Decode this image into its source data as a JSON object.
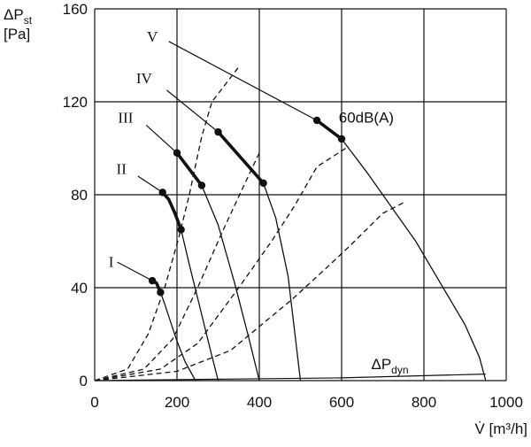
{
  "chart_data": {
    "type": "line",
    "title": "",
    "ylabel": {
      "main": "ΔP",
      "sub": "st",
      "unit": "[Pa]"
    },
    "xlabel": "V̇ [m³/h]",
    "xlim": [
      0,
      1000
    ],
    "ylim": [
      0,
      160
    ],
    "x_ticks": [
      0,
      200,
      400,
      600,
      800,
      1000
    ],
    "y_ticks": [
      0,
      40,
      80,
      120,
      160
    ],
    "grid": true,
    "legend": "none",
    "colors": {
      "line": "#111111",
      "grid": "#111111"
    },
    "series": [
      {
        "name": "I",
        "style": "solid",
        "points": [
          [
            140,
            43
          ],
          [
            150,
            42
          ],
          [
            160,
            38
          ],
          [
            170,
            33
          ],
          [
            185,
            25
          ],
          [
            200,
            17
          ],
          [
            220,
            8
          ],
          [
            245,
            0
          ]
        ],
        "bold": [
          [
            140,
            43
          ],
          [
            150,
            42
          ],
          [
            160,
            38
          ]
        ],
        "markers": [
          [
            140,
            43
          ],
          [
            160,
            38
          ]
        ]
      },
      {
        "name": "II",
        "style": "solid",
        "points": [
          [
            165,
            81
          ],
          [
            180,
            78
          ],
          [
            195,
            72
          ],
          [
            210,
            65
          ],
          [
            230,
            50
          ],
          [
            255,
            32
          ],
          [
            280,
            14
          ],
          [
            300,
            0
          ]
        ],
        "bold": [
          [
            165,
            81
          ],
          [
            180,
            78
          ],
          [
            195,
            72
          ],
          [
            210,
            65
          ]
        ],
        "markers": [
          [
            165,
            81
          ],
          [
            210,
            65
          ]
        ]
      },
      {
        "name": "III",
        "style": "solid",
        "points": [
          [
            200,
            98
          ],
          [
            230,
            91
          ],
          [
            260,
            84
          ],
          [
            300,
            67
          ],
          [
            340,
            42
          ],
          [
            375,
            18
          ],
          [
            400,
            0
          ]
        ],
        "bold": [
          [
            200,
            98
          ],
          [
            230,
            91
          ],
          [
            260,
            84
          ]
        ],
        "markers": [
          [
            200,
            98
          ],
          [
            260,
            84
          ]
        ]
      },
      {
        "name": "IV",
        "style": "solid",
        "points": [
          [
            300,
            107
          ],
          [
            350,
            97
          ],
          [
            410,
            85
          ],
          [
            440,
            70
          ],
          [
            470,
            45
          ],
          [
            500,
            0
          ]
        ],
        "bold": [
          [
            300,
            107
          ],
          [
            350,
            97
          ],
          [
            410,
            85
          ]
        ],
        "markers": [
          [
            300,
            107
          ],
          [
            410,
            85
          ]
        ]
      },
      {
        "name": "V",
        "style": "solid",
        "points": [
          [
            540,
            112
          ],
          [
            600,
            104
          ],
          [
            660,
            90
          ],
          [
            720,
            75
          ],
          [
            780,
            60
          ],
          [
            840,
            42
          ],
          [
            900,
            24
          ],
          [
            935,
            10
          ],
          [
            950,
            0
          ]
        ],
        "bold": [
          [
            540,
            112
          ],
          [
            570,
            108
          ],
          [
            600,
            104
          ]
        ],
        "markers": [
          [
            540,
            112
          ],
          [
            600,
            104
          ]
        ]
      },
      {
        "name": "",
        "style": "dashed",
        "points": [
          [
            0,
            0
          ],
          [
            80,
            5
          ],
          [
            130,
            20
          ],
          [
            170,
            40
          ],
          [
            205,
            62
          ],
          [
            230,
            80
          ],
          [
            260,
            105
          ],
          [
            285,
            120
          ],
          [
            350,
            135
          ]
        ]
      },
      {
        "name": "",
        "style": "dashed",
        "points": [
          [
            0,
            0
          ],
          [
            120,
            5
          ],
          [
            190,
            18
          ],
          [
            250,
            40
          ],
          [
            310,
            64
          ],
          [
            360,
            83
          ],
          [
            400,
            98
          ]
        ]
      },
      {
        "name": "",
        "style": "dashed",
        "points": [
          [
            0,
            0
          ],
          [
            160,
            5
          ],
          [
            250,
            16
          ],
          [
            350,
            40
          ],
          [
            430,
            60
          ],
          [
            485,
            75
          ],
          [
            540,
            92
          ],
          [
            610,
            100
          ]
        ]
      },
      {
        "name": "",
        "style": "dashed",
        "points": [
          [
            0,
            0
          ],
          [
            200,
            4
          ],
          [
            330,
            13
          ],
          [
            480,
            35
          ],
          [
            560,
            48
          ],
          [
            620,
            58
          ],
          [
            700,
            72
          ],
          [
            755,
            77
          ]
        ]
      },
      {
        "name": "",
        "style": "solid-thin",
        "points": [
          [
            0,
            0
          ],
          [
            300,
            0.6
          ],
          [
            600,
            1.2
          ],
          [
            950,
            2.8
          ]
        ]
      }
    ],
    "curve_labels": [
      {
        "text": "I",
        "x": 40,
        "y": 49
      },
      {
        "text": "II",
        "x": 65,
        "y": 89
      },
      {
        "text": "III",
        "x": 75,
        "y": 111
      },
      {
        "text": "IV",
        "x": 120,
        "y": 128
      },
      {
        "text": "V",
        "x": 140,
        "y": 146
      }
    ],
    "annotations": [
      {
        "text": "60dB(A)",
        "x": 593,
        "y": 111
      },
      {
        "text": "ΔP",
        "sub": "dyn",
        "x": 672,
        "y": 5
      }
    ],
    "label_leaders": [
      [
        [
          55,
          51
        ],
        [
          140,
          43
        ]
      ],
      [
        [
          105,
          88
        ],
        [
          165,
          81
        ]
      ],
      [
        [
          125,
          110
        ],
        [
          200,
          98
        ]
      ],
      [
        [
          175,
          125
        ],
        [
          300,
          107
        ]
      ],
      [
        [
          180,
          146
        ],
        [
          540,
          112
        ]
      ]
    ]
  }
}
